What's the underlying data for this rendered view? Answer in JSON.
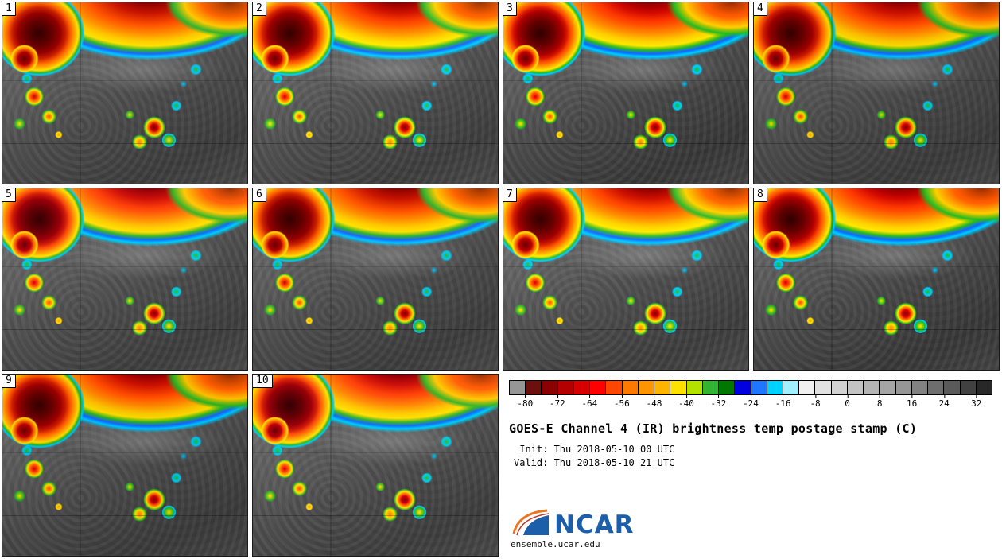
{
  "figure": {
    "title": "GOES-E Channel 4 (IR) brightness temp postage stamp (C)",
    "init_label": " Init: Thu 2018-05-10 00 UTC",
    "valid_label": "Valid: Thu 2018-05-10 21 UTC",
    "credit": "ensemble.ucar.edu"
  },
  "logo": {
    "text": "NCAR",
    "text_color": "#1b5faa",
    "swoosh_color": "#e87722"
  },
  "panels": [
    {
      "label": "1"
    },
    {
      "label": "2"
    },
    {
      "label": "3"
    },
    {
      "label": "4"
    },
    {
      "label": "5"
    },
    {
      "label": "6"
    },
    {
      "label": "7"
    },
    {
      "label": "8"
    },
    {
      "label": "9"
    },
    {
      "label": "10"
    }
  ],
  "colorbar": {
    "units": "C",
    "min": -84,
    "max": 36,
    "ticks": [
      "-80",
      "-72",
      "-64",
      "-56",
      "-48",
      "-40",
      "-32",
      "-24",
      "-16",
      "-8",
      "0",
      "8",
      "16",
      "24",
      "32"
    ],
    "segments": [
      "#969696",
      "#6b0f0f",
      "#8b0000",
      "#b40000",
      "#d70000",
      "#ff0000",
      "#ff4600",
      "#ff7800",
      "#ff9600",
      "#ffb400",
      "#ffe100",
      "#b4e100",
      "#32b432",
      "#007800",
      "#0000e1",
      "#1e78ff",
      "#00d2ff",
      "#a0f0ff",
      "#f0f0f0",
      "#e1e1e1",
      "#d2d2d2",
      "#c3c3c3",
      "#b4b4b4",
      "#a5a5a5",
      "#969696",
      "#828282",
      "#6e6e6e",
      "#5a5a5a",
      "#414141",
      "#282828"
    ]
  }
}
